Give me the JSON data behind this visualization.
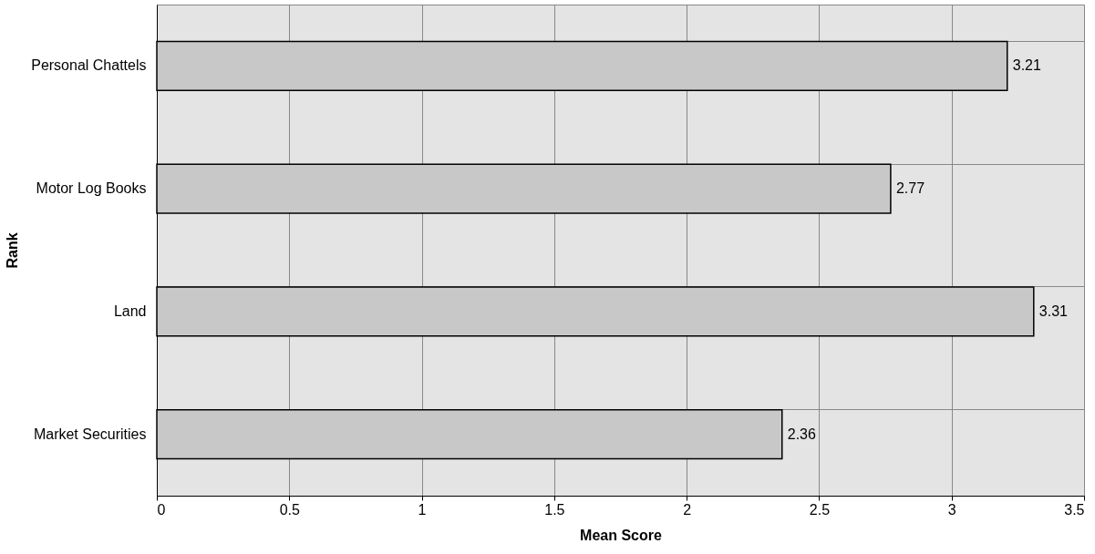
{
  "chart_data": {
    "type": "bar",
    "orientation": "horizontal",
    "xlabel": "Mean Score",
    "ylabel": "Rank",
    "categories": [
      "Personal Chattels",
      "Motor Log Books",
      "Land",
      "Market Securities"
    ],
    "values": [
      3.21,
      2.77,
      3.31,
      2.36
    ],
    "color": "#c8c8c8",
    "xlim": [
      0,
      3.5
    ],
    "xticks": [
      0,
      0.5,
      1,
      1.5,
      2,
      2.5,
      3,
      3.5
    ],
    "grid": true,
    "data_labels": true
  }
}
